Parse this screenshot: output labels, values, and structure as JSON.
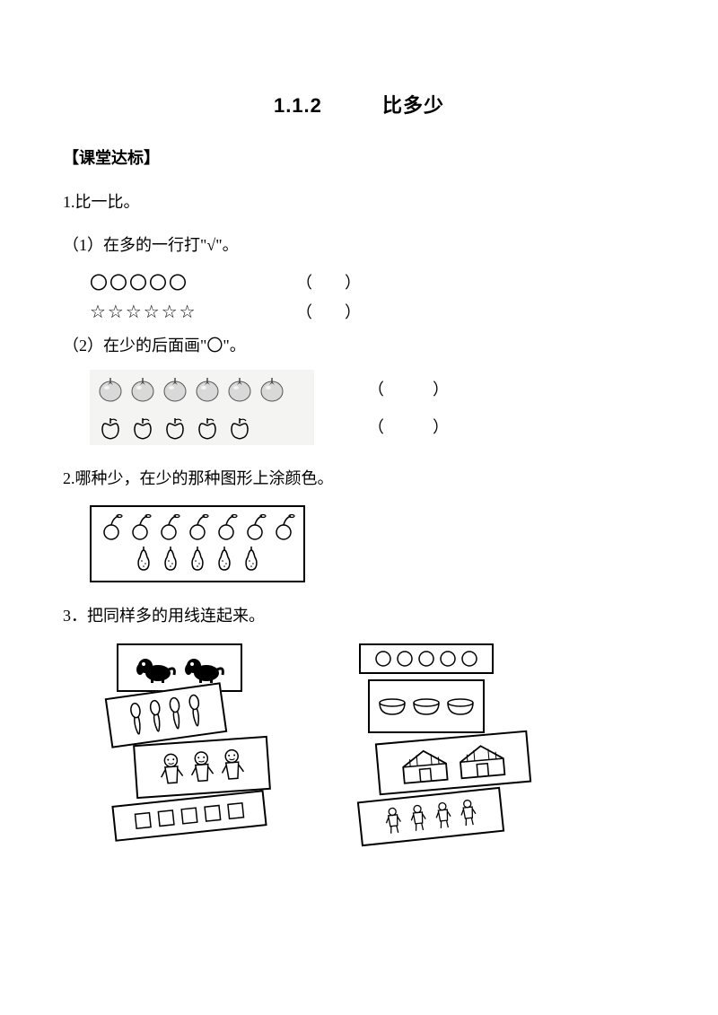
{
  "title_num": "1.1.2",
  "title_text": "比多少",
  "section_header": "【课堂达标】",
  "q1": {
    "label": "1.比一比。",
    "sub1": "（1）在多的一行打\"√\"。",
    "circles": "〇〇〇〇〇",
    "stars": "☆☆☆☆☆☆",
    "paren": "（　　）",
    "sub2": "（2）在少的后面画\"〇\"。",
    "tomato_count": 6,
    "apple_count": 5,
    "paren2": "（　　　）"
  },
  "q2": {
    "label": "2.哪种少，在少的那种图形上涂颜色。",
    "cherry_count": 7,
    "pear_count": 5
  },
  "q3": {
    "label": "3．把同样多的用线连起来。",
    "left_dogs": 2,
    "left_pins": 4,
    "left_kids": 3,
    "left_squares": 5,
    "right_circles": 5,
    "right_bowls": 3,
    "right_houses": 2,
    "right_people": 4
  },
  "colors": {
    "bg": "#ffffff",
    "text": "#000000",
    "fruit_bg": "#f4f5f2",
    "tomato_fill": "#bfbfbf",
    "tomato_stem": "#4a4a4a"
  }
}
